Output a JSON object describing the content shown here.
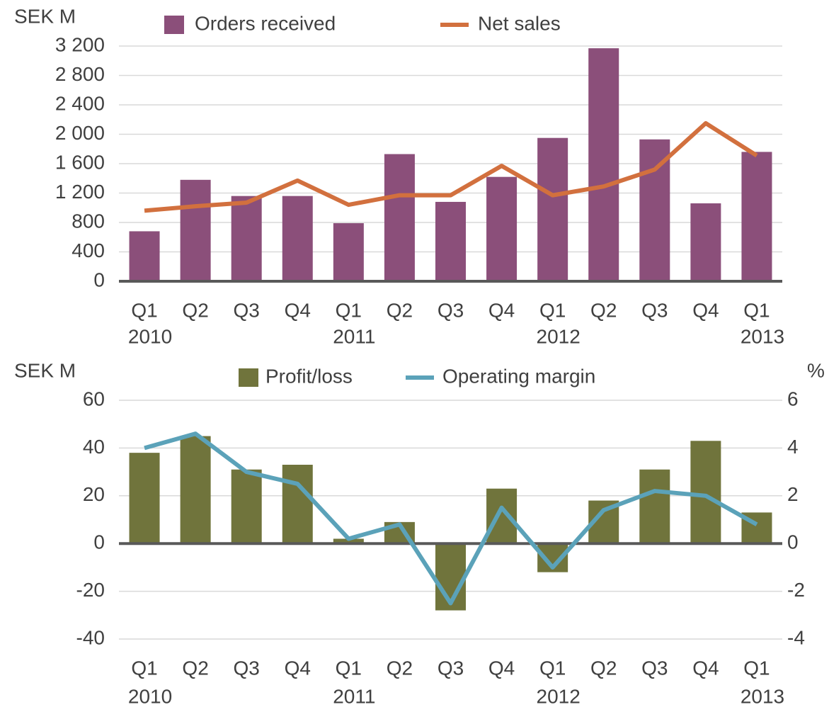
{
  "chart_data": [
    {
      "type": "bar_line",
      "y_label": "SEK M",
      "categories": [
        [
          "Q1",
          "2010"
        ],
        [
          "Q2"
        ],
        [
          "Q3"
        ],
        [
          "Q4"
        ],
        [
          "Q1",
          "2011"
        ],
        [
          "Q2"
        ],
        [
          "Q3"
        ],
        [
          "Q4"
        ],
        [
          "Q1",
          "2012"
        ],
        [
          "Q2"
        ],
        [
          "Q3"
        ],
        [
          "Q4"
        ],
        [
          "Q1",
          "2013"
        ]
      ],
      "series": [
        {
          "name": "Orders received",
          "kind": "bar",
          "color": "#8b4f7a",
          "values": [
            680,
            1380,
            1160,
            1160,
            790,
            1730,
            1080,
            1420,
            1950,
            3170,
            1930,
            1060,
            1760
          ]
        },
        {
          "name": "Net sales",
          "kind": "line",
          "color": "#d2703e",
          "values": [
            960,
            1020,
            1070,
            1370,
            1040,
            1170,
            1170,
            1570,
            1170,
            1290,
            1520,
            2150,
            1710
          ]
        }
      ],
      "ylim": [
        0,
        3200
      ],
      "yticks": [
        0,
        400,
        800,
        {
          "value": 1200,
          "label": "1 200"
        },
        {
          "value": 1600,
          "label": "1 600"
        },
        {
          "value": 2000,
          "label": "2 000"
        },
        {
          "value": 2400,
          "label": "2 400"
        },
        {
          "value": 2800,
          "label": "2 800"
        },
        {
          "value": 3200,
          "label": "3 200"
        }
      ],
      "grid": true
    },
    {
      "type": "bar_line",
      "y_label": "SEK M",
      "y2_label": "%",
      "categories": [
        [
          "Q1",
          "2010"
        ],
        [
          "Q2"
        ],
        [
          "Q3"
        ],
        [
          "Q4"
        ],
        [
          "Q1",
          "2011"
        ],
        [
          "Q2"
        ],
        [
          "Q3"
        ],
        [
          "Q4"
        ],
        [
          "Q1",
          "2012"
        ],
        [
          "Q2"
        ],
        [
          "Q3"
        ],
        [
          "Q4"
        ],
        [
          "Q1",
          "2013"
        ]
      ],
      "series": [
        {
          "name": "Profit/loss",
          "kind": "bar",
          "color": "#70743c",
          "values": [
            38,
            45,
            31,
            33,
            2,
            9,
            -28,
            23,
            -12,
            18,
            31,
            43,
            13
          ]
        },
        {
          "name": "Operating margin",
          "kind": "line",
          "axis": "y2",
          "color": "#5ba2b9",
          "values": [
            4.0,
            4.6,
            3.0,
            2.5,
            0.2,
            0.8,
            -2.5,
            1.5,
            -1.0,
            1.4,
            2.2,
            2.0,
            0.8
          ]
        }
      ],
      "ylim": [
        -40,
        60
      ],
      "yticks": [
        -40,
        -20,
        0,
        20,
        40,
        60
      ],
      "y2lim": [
        -4,
        6
      ],
      "y2ticks": [
        -4,
        -2,
        0,
        2,
        4,
        6
      ],
      "grid": true
    }
  ]
}
